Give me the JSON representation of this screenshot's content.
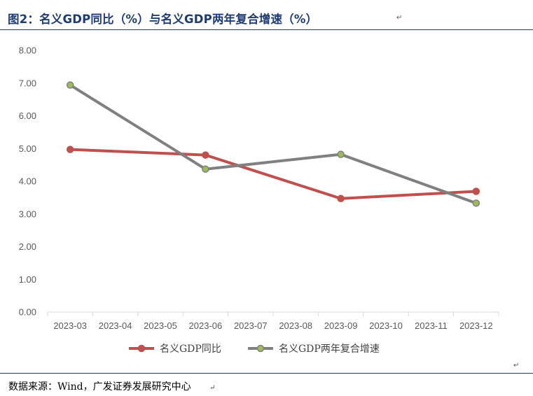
{
  "figure": {
    "title": "图2：名义GDP同比（%）与名义GDP两年复合增速（%）",
    "source": "数据来源：Wind，广发证券发展研究中心",
    "paragraph_mark": "↵"
  },
  "colors": {
    "title": "#1f3c74",
    "series_1": "#c0504d",
    "series_2": "#808080",
    "series_2_marker": "#9bbb59",
    "axis": "#d9d9d9",
    "tick_text": "#595959"
  },
  "chart_data": {
    "type": "line",
    "title": "",
    "xlabel": "",
    "ylabel": "",
    "ylim": [
      0,
      8
    ],
    "yticks": [
      "0.00",
      "1.00",
      "2.00",
      "3.00",
      "4.00",
      "5.00",
      "6.00",
      "7.00",
      "8.00"
    ],
    "yticks_values": [
      0,
      1,
      2,
      3,
      4,
      5,
      6,
      7,
      8
    ],
    "categories": [
      "2023-03",
      "2023-04",
      "2023-05",
      "2023-06",
      "2023-07",
      "2023-08",
      "2023-09",
      "2023-10",
      "2023-11",
      "2023-12"
    ],
    "grid": false,
    "legend_position": "bottom",
    "series": [
      {
        "name": "名义GDP同比",
        "x": [
          "2023-03",
          "2023-06",
          "2023-09",
          "2023-12"
        ],
        "values": [
          4.97,
          4.8,
          3.47,
          3.69
        ]
      },
      {
        "name": "名义GDP两年复合增速",
        "x": [
          "2023-03",
          "2023-06",
          "2023-09",
          "2023-12"
        ],
        "values": [
          6.94,
          4.37,
          4.82,
          3.33
        ]
      }
    ]
  }
}
